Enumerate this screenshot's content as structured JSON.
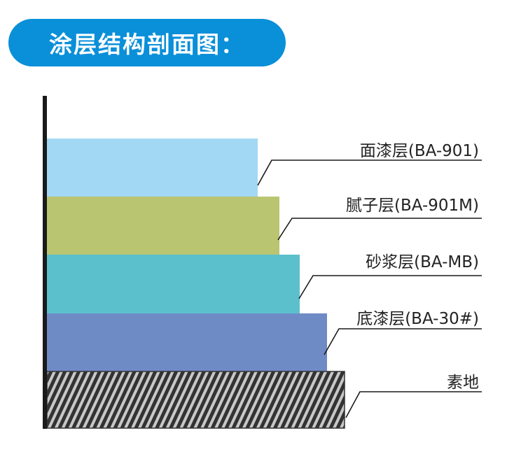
{
  "title": "涂层结构剖面图：",
  "layers": [
    {
      "label": "面漆层(BA-901)",
      "color": "#a3d8f5"
    },
    {
      "label": "腻子层(BA-901M)",
      "color": "#bac572"
    },
    {
      "label": "砂浆层(BA-MB)",
      "color": "#5bc0cc"
    },
    {
      "label": "底漆层(BA-30#)",
      "color": "#6f8bc6"
    },
    {
      "label": "素地",
      "color": "hatched-gray"
    }
  ],
  "colors": {
    "title_bg": "#0a8fd9",
    "axis": "#1a1a1a"
  }
}
